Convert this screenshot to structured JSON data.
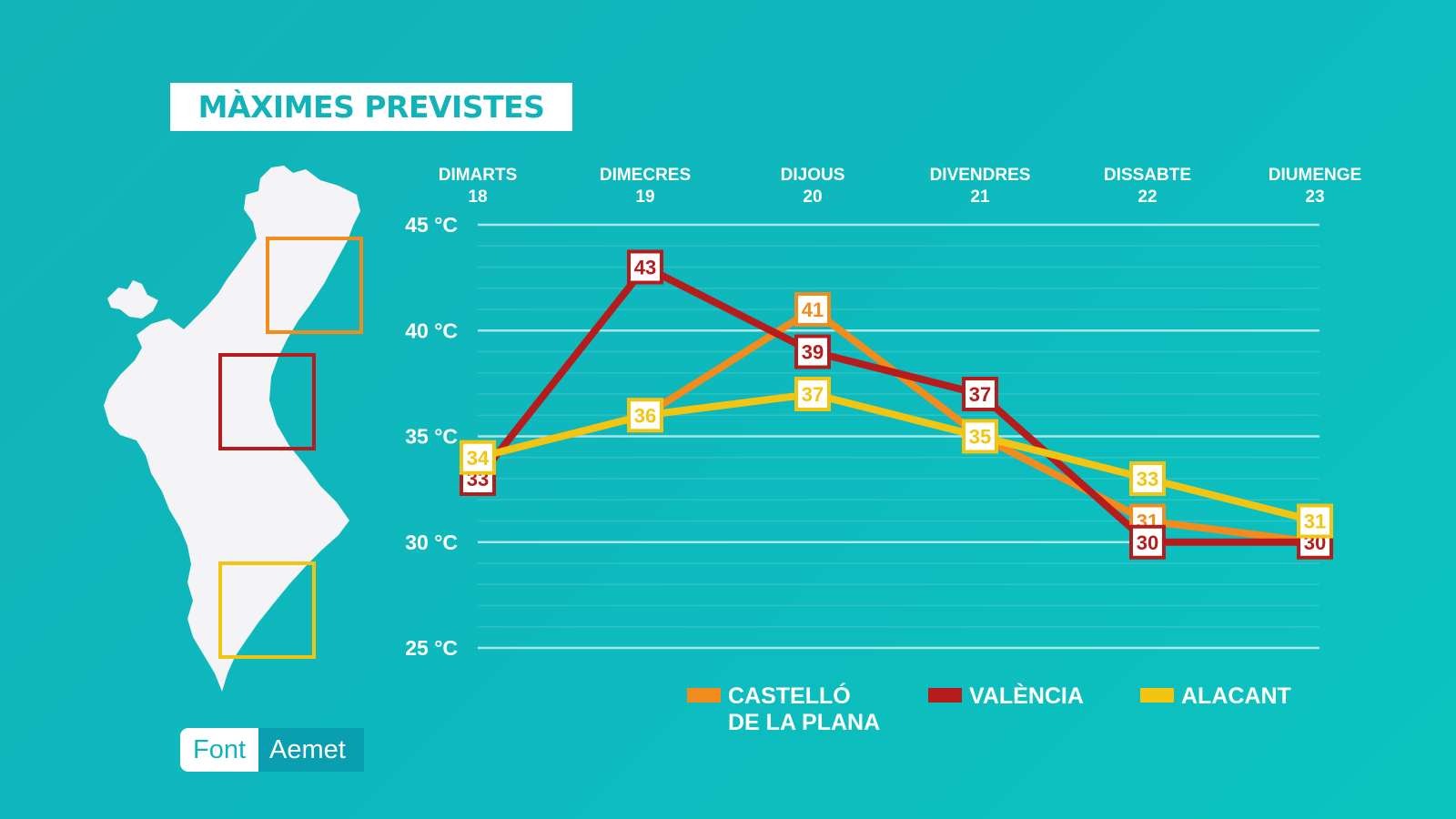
{
  "title": "MÀXIMES PREVISTES",
  "source": {
    "label": "Font",
    "value": "Aemet"
  },
  "colors": {
    "castello": "#f28c1c",
    "valencia": "#b71c1c",
    "alacant": "#f2c512",
    "background": "#12b3b8"
  },
  "chart_data": {
    "type": "line",
    "categories": [
      {
        "day": "DIMARTS",
        "date": "18"
      },
      {
        "day": "DIMECRES",
        "date": "19"
      },
      {
        "day": "DIJOUS",
        "date": "20"
      },
      {
        "day": "DIVENDRES",
        "date": "21"
      },
      {
        "day": "DISSABTE",
        "date": "22"
      },
      {
        "day": "DIUMENGE",
        "date": "23"
      }
    ],
    "y_ticks": [
      "45 °C",
      "40 °C",
      "35 °C",
      "30 °C",
      "25 °C"
    ],
    "ylim": [
      25,
      45
    ],
    "series": [
      {
        "key": "castello",
        "name_lines": [
          "CASTELLÓ",
          "DE LA PLANA"
        ],
        "values": [
          34,
          36,
          41,
          35,
          31,
          30
        ]
      },
      {
        "key": "valencia",
        "name_lines": [
          "VALÈNCIA"
        ],
        "values": [
          33,
          43,
          39,
          37,
          30,
          30
        ]
      },
      {
        "key": "alacant",
        "name_lines": [
          "ALACANT"
        ],
        "values": [
          34,
          36,
          37,
          35,
          33,
          31
        ]
      }
    ]
  }
}
